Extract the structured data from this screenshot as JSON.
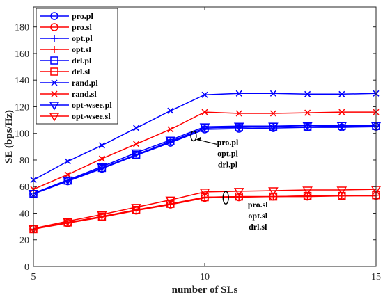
{
  "chart_data": {
    "type": "line",
    "title": "",
    "xlabel": "number of SLs",
    "ylabel": "SE (bps/Hz)",
    "xlim": [
      5,
      15
    ],
    "ylim": [
      0,
      195
    ],
    "x_ticks": [
      5,
      10,
      15
    ],
    "y_ticks": [
      0,
      20,
      40,
      60,
      80,
      100,
      120,
      140,
      160,
      180
    ],
    "grid": false,
    "legend_position": "top-left",
    "x": [
      5,
      6,
      7,
      8,
      9,
      10,
      11,
      12,
      13,
      14,
      15
    ],
    "series": [
      {
        "name": "pro.pl",
        "color": "#0000ff",
        "marker": "circle",
        "values": [
          54.5,
          64,
          73.5,
          83.5,
          93,
          103,
          103.5,
          104,
          104.5,
          104.5,
          105
        ]
      },
      {
        "name": "pro.sl",
        "color": "#ff0000",
        "marker": "circle",
        "values": [
          28,
          32.5,
          37,
          42,
          46.5,
          51.5,
          52,
          52.5,
          52.5,
          53,
          53
        ]
      },
      {
        "name": "opt.pl",
        "color": "#0000ff",
        "marker": "plus",
        "values": [
          55,
          64.5,
          74,
          84,
          93.5,
          104,
          104.5,
          105,
          105,
          105.5,
          105.5
        ]
      },
      {
        "name": "opt.sl",
        "color": "#ff0000",
        "marker": "plus",
        "values": [
          28,
          33,
          37.5,
          42.5,
          47,
          52,
          52.5,
          52.5,
          53,
          53,
          53.5
        ]
      },
      {
        "name": "drl.pl",
        "color": "#0000ff",
        "marker": "square",
        "values": [
          54.5,
          64.5,
          74,
          84,
          94,
          104,
          104.5,
          105,
          105,
          105.5,
          105.5
        ]
      },
      {
        "name": "drl.sl",
        "color": "#ff0000",
        "marker": "square",
        "values": [
          28,
          33,
          37.5,
          42.5,
          47,
          52,
          52.5,
          52.5,
          53,
          53,
          53.5
        ]
      },
      {
        "name": "rand.pl",
        "color": "#0000ff",
        "marker": "x",
        "values": [
          65,
          79,
          91,
          104,
          117,
          129,
          130,
          130,
          129.5,
          129.5,
          130
        ]
      },
      {
        "name": "rand.sl",
        "color": "#ff0000",
        "marker": "x",
        "values": [
          58,
          69,
          81,
          92,
          103,
          116,
          115,
          115,
          115.5,
          116,
          116
        ]
      },
      {
        "name": "opt-wsee.pl",
        "color": "#0000ff",
        "marker": "triangle-down",
        "values": [
          55,
          65,
          75,
          85.5,
          95,
          105,
          105.5,
          105.5,
          106,
          106,
          106
        ]
      },
      {
        "name": "opt-wsee.sl",
        "color": "#ff0000",
        "marker": "triangle-down",
        "values": [
          28.5,
          34,
          39,
          44.5,
          50,
          56,
          56.5,
          57,
          57.5,
          57.5,
          58
        ]
      }
    ],
    "annotations": [
      {
        "lines": [
          "pro.pl",
          "opt.pl",
          "drl.pl"
        ],
        "at_x": 10,
        "at_y": 98
      },
      {
        "lines": [
          "pro.sl",
          "opt.sl",
          "drl.sl"
        ],
        "at_x": 12.2,
        "at_y": 48
      }
    ]
  }
}
